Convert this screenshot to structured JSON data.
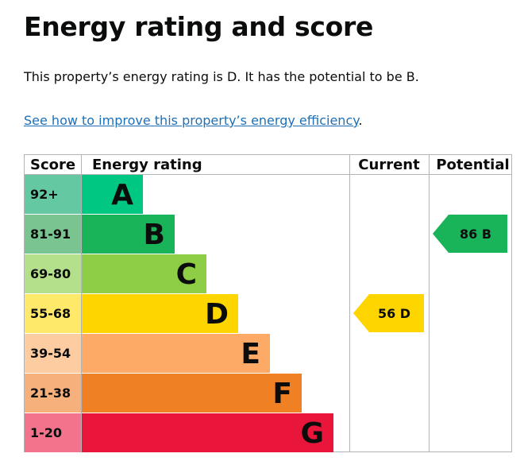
{
  "heading": "Energy rating and score",
  "summary": "This property’s energy rating is D. It has the potential to be B.",
  "link": {
    "text": "See how to improve this property’s energy efficiency",
    "suffix": "."
  },
  "chart_data": {
    "type": "bar",
    "headers": {
      "score": "Score",
      "rating": "Energy rating",
      "current": "Current",
      "potential": "Potential"
    },
    "bands": [
      {
        "letter": "A",
        "range": "92+",
        "bar_color": "#00c781",
        "score_bg": "#64c9a2"
      },
      {
        "letter": "B",
        "range": "81-91",
        "bar_color": "#19b459",
        "score_bg": "#7ac491"
      },
      {
        "letter": "C",
        "range": "69-80",
        "bar_color": "#8dce46",
        "score_bg": "#b4e08b"
      },
      {
        "letter": "D",
        "range": "55-68",
        "bar_color": "#ffd500",
        "score_bg": "#ffe96a"
      },
      {
        "letter": "E",
        "range": "39-54",
        "bar_color": "#fcaa65",
        "score_bg": "#fdcca1"
      },
      {
        "letter": "F",
        "range": "21-38",
        "bar_color": "#ef8023",
        "score_bg": "#f6b07b"
      },
      {
        "letter": "G",
        "range": "1-20",
        "bar_color": "#e9153b",
        "score_bg": "#f2738b"
      }
    ],
    "current": {
      "score": 56,
      "band": "D",
      "label": "56 D",
      "color": "#ffd500"
    },
    "potential": {
      "score": 86,
      "band": "B",
      "label": "86 B",
      "color": "#19b459"
    }
  }
}
